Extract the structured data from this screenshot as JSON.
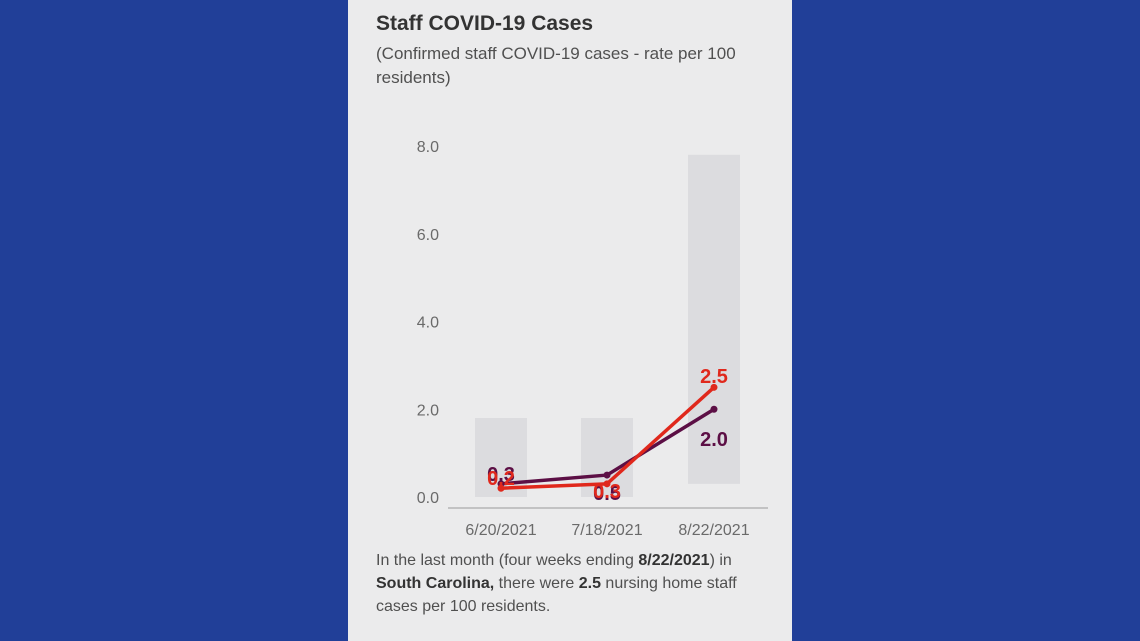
{
  "card": {
    "title": "Staff COVID-19 Cases",
    "subtitle": "(Confirmed staff COVID-19 cases - rate per 100 residents)"
  },
  "footnote": {
    "part1": "In the last month (four weeks ending ",
    "date": "8/22/2021",
    "part2": ") in ",
    "state": "South Carolina,",
    "part3": " there were ",
    "value": "2.5",
    "part4": " nursing home staff cases per 100 residents."
  },
  "colors": {
    "background": "#213f98",
    "card": "#ebebec",
    "bar": "#dcdcdf",
    "state_line": "#e0281c",
    "national_line": "#5c0f45"
  },
  "chart_data": {
    "type": "line",
    "categories": [
      "6/20/2021",
      "7/18/2021",
      "8/22/2021"
    ],
    "yticks": [
      "0.0",
      "2.0",
      "4.0",
      "6.0",
      "8.0"
    ],
    "ylim": [
      0,
      8
    ],
    "bars": [
      {
        "low": 0.0,
        "high": 1.8
      },
      {
        "low": 0.0,
        "high": 1.8
      },
      {
        "low": 0.3,
        "high": 7.8
      }
    ],
    "series": [
      {
        "color": "#e0281c",
        "values": [
          0.2,
          0.3,
          2.5
        ],
        "labels": [
          "0.2",
          "0.3",
          "2.5"
        ]
      },
      {
        "color": "#5c0f45",
        "values": [
          0.3,
          0.5,
          2.0
        ],
        "labels": [
          "0.3",
          "0.5",
          "2.0"
        ]
      }
    ],
    "grid": false,
    "legend": "none"
  }
}
